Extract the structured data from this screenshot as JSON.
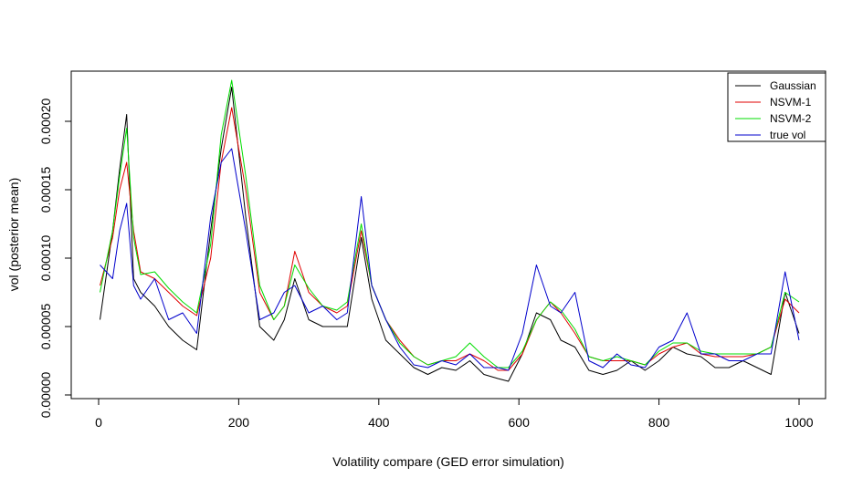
{
  "chart_data": {
    "type": "line",
    "title": "",
    "xlabel": "Volatility compare (GED error simulation)",
    "ylabel": "vol (posterior mean)",
    "xlim": [
      0,
      1000
    ],
    "ylim": [
      0.0,
      0.00023
    ],
    "x_ticks": [
      0,
      200,
      400,
      600,
      800,
      1000
    ],
    "x_tick_labels": [
      "0",
      "200",
      "400",
      "600",
      "800",
      "1000"
    ],
    "y_ticks": [
      0.0,
      5e-05,
      0.0001,
      0.00015,
      0.0002
    ],
    "y_tick_labels": [
      "0.00000",
      "0.00005",
      "0.00010",
      "0.00015",
      "0.00020"
    ],
    "grid": false,
    "legend_position": "top-right",
    "x": [
      2,
      20,
      30,
      40,
      50,
      60,
      80,
      100,
      120,
      140,
      160,
      175,
      190,
      210,
      230,
      250,
      265,
      280,
      300,
      320,
      340,
      355,
      375,
      390,
      410,
      430,
      450,
      470,
      490,
      510,
      530,
      550,
      570,
      585,
      605,
      625,
      645,
      660,
      680,
      700,
      720,
      740,
      760,
      780,
      800,
      820,
      840,
      860,
      880,
      900,
      920,
      940,
      960,
      980,
      1000
    ],
    "series": [
      {
        "name": "Gaussian",
        "color": "#000000",
        "values": [
          5.5e-05,
          0.00012,
          0.000165,
          0.000205,
          8.5e-05,
          7.5e-05,
          6.5e-05,
          5e-05,
          4e-05,
          3.3e-05,
          0.00012,
          0.00018,
          0.000225,
          0.00013,
          5e-05,
          4e-05,
          5.5e-05,
          8.5e-05,
          5.5e-05,
          5e-05,
          5e-05,
          5e-05,
          0.000115,
          7e-05,
          4e-05,
          3e-05,
          2e-05,
          1.5e-05,
          2e-05,
          1.8e-05,
          2.5e-05,
          1.5e-05,
          1.2e-05,
          1e-05,
          3e-05,
          6e-05,
          5.5e-05,
          4e-05,
          3.5e-05,
          1.8e-05,
          1.5e-05,
          1.8e-05,
          2.5e-05,
          1.8e-05,
          2.5e-05,
          3.5e-05,
          3e-05,
          2.8e-05,
          2e-05,
          2e-05,
          2.5e-05,
          2e-05,
          1.5e-05,
          7.5e-05,
          4.5e-05
        ]
      },
      {
        "name": "NSVM-1",
        "color": "#e00000",
        "values": [
          8e-05,
          0.000115,
          0.00015,
          0.00017,
          0.00012,
          9e-05,
          8.5e-05,
          7.5e-05,
          6.5e-05,
          5.8e-05,
          0.0001,
          0.00017,
          0.00021,
          0.00015,
          7.5e-05,
          5.5e-05,
          6.5e-05,
          0.000105,
          7.5e-05,
          6.5e-05,
          6e-05,
          6.5e-05,
          0.00012,
          8e-05,
          5.5e-05,
          4e-05,
          2.8e-05,
          2.2e-05,
          2.5e-05,
          2.5e-05,
          3e-05,
          2.5e-05,
          1.8e-05,
          1.8e-05,
          3e-05,
          5.5e-05,
          6.8e-05,
          6e-05,
          4.5e-05,
          2.8e-05,
          2.5e-05,
          2.5e-05,
          2.5e-05,
          2.2e-05,
          3e-05,
          3.5e-05,
          3.8e-05,
          3e-05,
          2.8e-05,
          2.8e-05,
          2.8e-05,
          3e-05,
          3.5e-05,
          7e-05,
          6e-05
        ]
      },
      {
        "name": "NSVM-2",
        "color": "#00dd00",
        "values": [
          7.5e-05,
          0.00012,
          0.00016,
          0.000195,
          0.000115,
          8.8e-05,
          9e-05,
          7.8e-05,
          6.8e-05,
          6e-05,
          0.00011,
          0.00019,
          0.00023,
          0.00016,
          8e-05,
          5.5e-05,
          6.5e-05,
          9.5e-05,
          7.8e-05,
          6.5e-05,
          6.2e-05,
          6.8e-05,
          0.000125,
          8e-05,
          5.5e-05,
          3.8e-05,
          2.8e-05,
          2.2e-05,
          2.5e-05,
          2.8e-05,
          3.8e-05,
          2.8e-05,
          2e-05,
          2e-05,
          3.2e-05,
          5.5e-05,
          6.8e-05,
          6.2e-05,
          4.8e-05,
          2.8e-05,
          2.5e-05,
          2.8e-05,
          2.5e-05,
          2.2e-05,
          3.2e-05,
          3.8e-05,
          3.8e-05,
          3.2e-05,
          3e-05,
          3e-05,
          3e-05,
          3e-05,
          3.5e-05,
          7.5e-05,
          6.8e-05
        ]
      },
      {
        "name": "true vol",
        "color": "#0000cc",
        "values": [
          9.5e-05,
          8.5e-05,
          0.00012,
          0.00014,
          8e-05,
          7e-05,
          8.5e-05,
          5.5e-05,
          6e-05,
          4.5e-05,
          0.00013,
          0.00017,
          0.00018,
          0.00012,
          5.5e-05,
          6e-05,
          7.5e-05,
          8e-05,
          6e-05,
          6.5e-05,
          5.5e-05,
          6e-05,
          0.000145,
          8e-05,
          5.5e-05,
          3.5e-05,
          2.2e-05,
          2e-05,
          2.5e-05,
          2.2e-05,
          3e-05,
          2e-05,
          2e-05,
          1.8e-05,
          4.5e-05,
          9.5e-05,
          6.5e-05,
          6e-05,
          7.5e-05,
          2.5e-05,
          2e-05,
          3e-05,
          2.2e-05,
          2e-05,
          3.5e-05,
          4e-05,
          6e-05,
          3e-05,
          3e-05,
          2.5e-05,
          2.5e-05,
          3e-05,
          3e-05,
          9e-05,
          4e-05
        ]
      }
    ]
  }
}
